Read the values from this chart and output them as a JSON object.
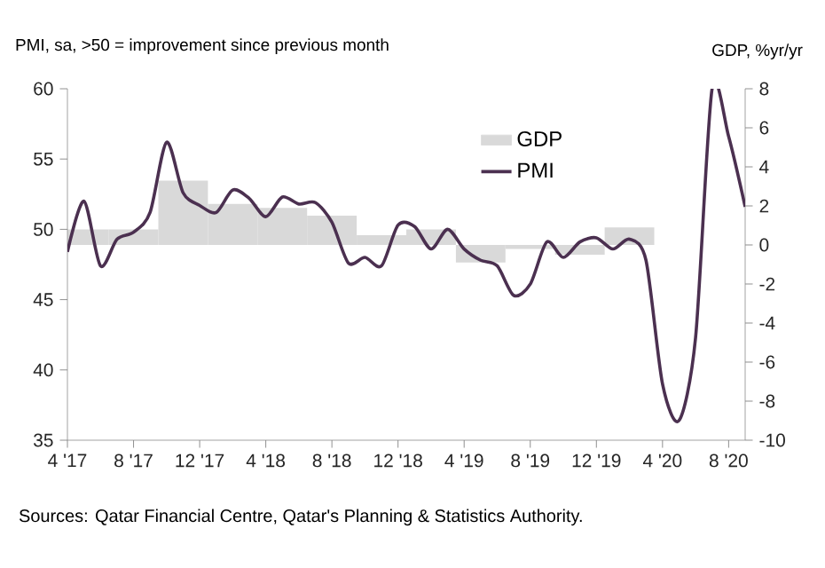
{
  "chart_data": {
    "type": "line",
    "ylabel": "PMI, sa, >50 = improvement since previous month",
    "y2label": "GDP, %yr/yr",
    "annotations": [
      "Sources: Qatar Financial Centre, Qatar's Planning & Statistics Authority."
    ],
    "xlim": [
      "2017-04",
      "2020-09"
    ],
    "xticks": [
      {
        "value": "2017-04",
        "label": "4 '17"
      },
      {
        "value": "2017-08",
        "label": "8 '17"
      },
      {
        "value": "2017-12",
        "label": "12 '17"
      },
      {
        "value": "2018-04",
        "label": "4 '18"
      },
      {
        "value": "2018-08",
        "label": "8 '18"
      },
      {
        "value": "2018-12",
        "label": "12 '18"
      },
      {
        "value": "2019-04",
        "label": "4 '19"
      },
      {
        "value": "2019-08",
        "label": "8 '19"
      },
      {
        "value": "2019-12",
        "label": "12 '19"
      },
      {
        "value": "2020-04",
        "label": "4 '20"
      },
      {
        "value": "2020-08",
        "label": "8 '20"
      }
    ],
    "ylim": [
      35,
      60
    ],
    "yticks": [
      35,
      40,
      45,
      50,
      55,
      60
    ],
    "y2lim": [
      -10,
      8
    ],
    "y2ticks": [
      -10,
      -8,
      -6,
      -4,
      -2,
      0,
      2,
      4,
      6,
      8
    ],
    "legend": "top right",
    "series": [
      {
        "name": "GDP",
        "type": "bar",
        "axis": "y2",
        "color": "#d9d9d9",
        "x": [
          "2017-05",
          "2017-08",
          "2017-11",
          "2018-02",
          "2018-05",
          "2018-08",
          "2018-11",
          "2019-02",
          "2019-05",
          "2019-08",
          "2019-11",
          "2020-02"
        ],
        "values": [
          0.8,
          0.8,
          3.3,
          2.1,
          1.9,
          1.5,
          0.5,
          0.8,
          -0.9,
          -0.2,
          -0.5,
          0.9
        ]
      },
      {
        "name": "PMI",
        "color": "#4b3050",
        "x": [
          "2017-04",
          "2017-05",
          "2017-06",
          "2017-07",
          "2017-08",
          "2017-09",
          "2017-10",
          "2017-11",
          "2017-12",
          "2018-01",
          "2018-02",
          "2018-03",
          "2018-04",
          "2018-05",
          "2018-06",
          "2018-07",
          "2018-08",
          "2018-09",
          "2018-10",
          "2018-11",
          "2018-12",
          "2019-01",
          "2019-02",
          "2019-03",
          "2019-04",
          "2019-05",
          "2019-06",
          "2019-07",
          "2019-08",
          "2019-09",
          "2019-10",
          "2019-11",
          "2019-12",
          "2020-01",
          "2020-02",
          "2020-03",
          "2020-04",
          "2020-05",
          "2020-06",
          "2020-07",
          "2020-08",
          "2020-09"
        ],
        "values": [
          48.4,
          52.0,
          47.4,
          49.3,
          49.8,
          51.2,
          56.2,
          52.6,
          51.7,
          51.2,
          52.8,
          52.2,
          50.9,
          52.3,
          51.8,
          51.9,
          50.5,
          47.6,
          48.0,
          47.4,
          50.3,
          50.2,
          48.6,
          50.0,
          48.6,
          47.8,
          47.4,
          45.3,
          46.1,
          49.1,
          48.0,
          49.1,
          49.4,
          48.6,
          49.3,
          47.8,
          39.0,
          36.4,
          42.3,
          60.0,
          56.6,
          51.6
        ]
      }
    ]
  }
}
